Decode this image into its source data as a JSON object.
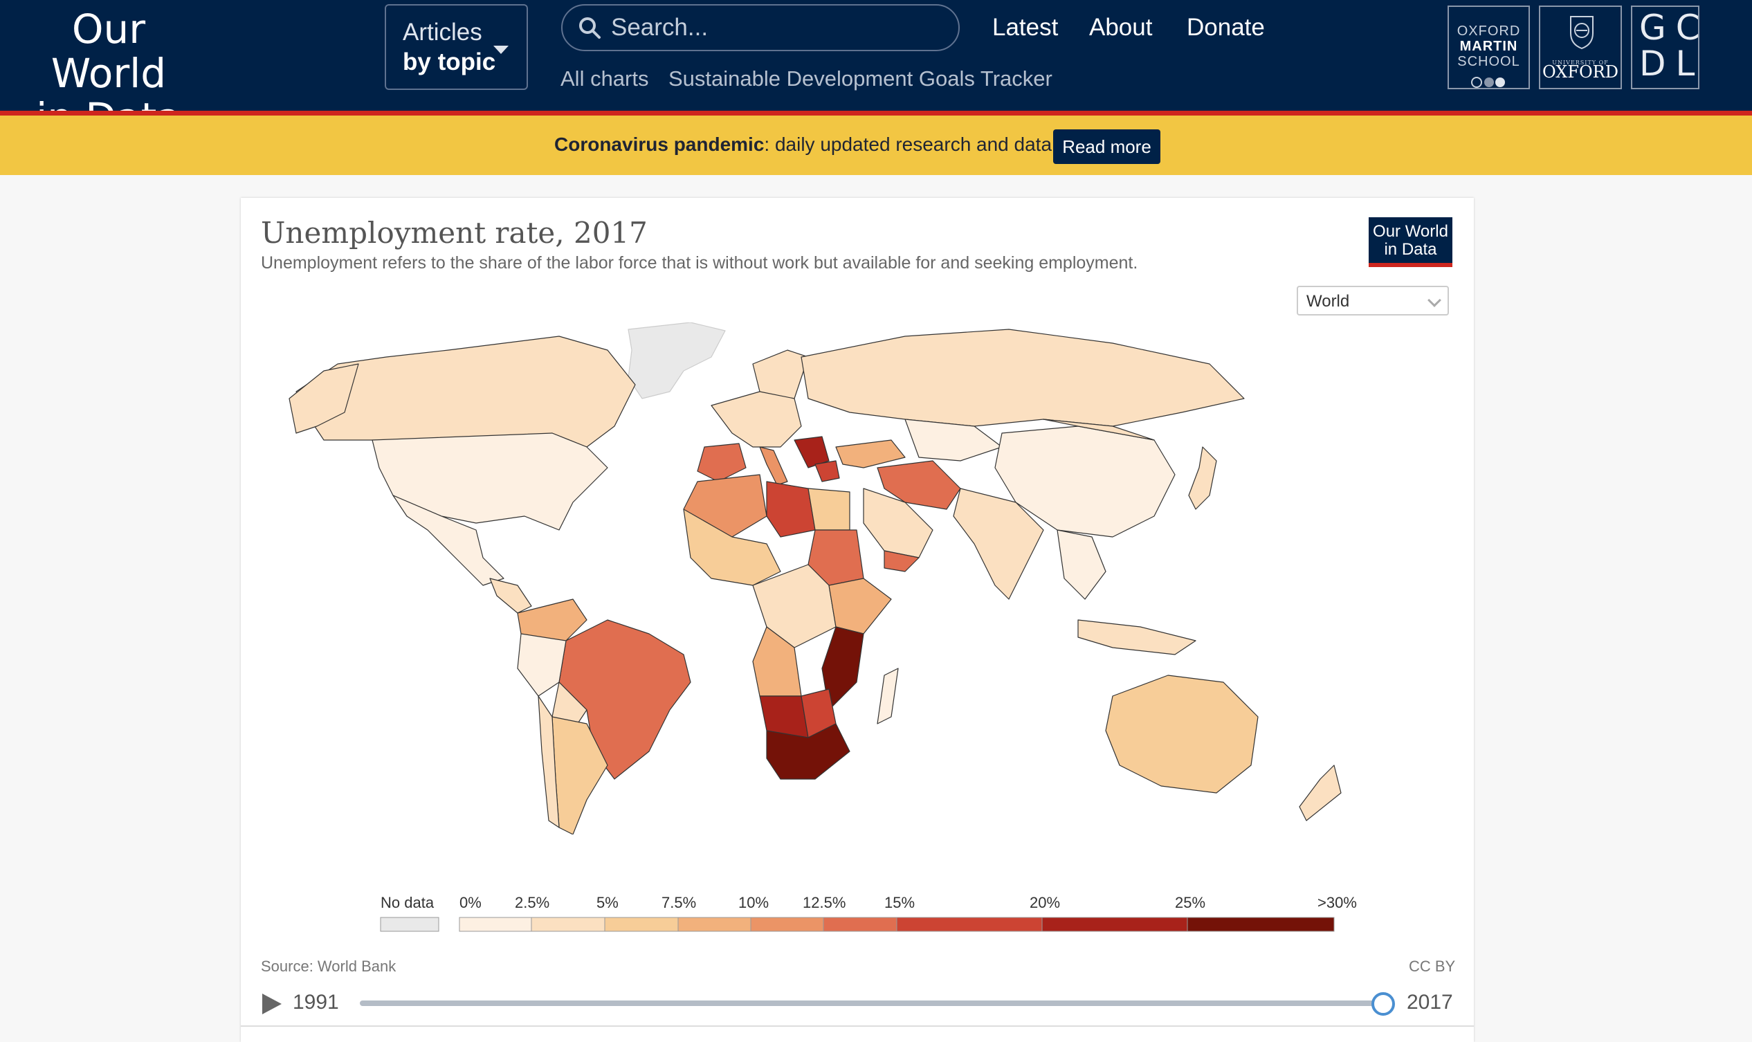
{
  "header": {
    "logo_line1": "Our World",
    "logo_line2": "in Data",
    "articles_line1": "Articles",
    "articles_line2": "by topic",
    "search_placeholder": "Search...",
    "nav": [
      "Latest",
      "About",
      "Donate"
    ],
    "subnav": [
      "All charts",
      "Sustainable Development Goals Tracker"
    ],
    "partners": {
      "oms_line1": "OXFORD",
      "oms_line2": "MARTIN",
      "oms_line3": "SCHOOL",
      "oxford_small": "UNIVERSITY OF",
      "oxford_name": "OXFORD",
      "gcdl_line1": "GC",
      "gcdl_line2": "DL"
    }
  },
  "banner": {
    "bold": "Coronavirus pandemic",
    "text": ": daily updated research and data.",
    "button": "Read more"
  },
  "chart": {
    "title": "Unemployment rate, 2017",
    "subtitle": "Unemployment refers to the share of the labor force that is without work but available for and seeking employment.",
    "badge_line1": "Our World",
    "badge_line2": "in Data",
    "region": "World",
    "source": "Source: World Bank",
    "license": "CC BY",
    "timeline_start": "1991",
    "timeline_end": "2017",
    "timeline_position": 1.0
  },
  "chart_data": {
    "type": "choropleth-map",
    "title": "Unemployment rate, 2017",
    "legend": {
      "no_data_label": "No data",
      "no_data_color": "#e9e9e9",
      "bins": [
        {
          "from": "0%",
          "to": "2.5%",
          "color": "#fdf0e2"
        },
        {
          "from": "2.5%",
          "to": "5%",
          "color": "#fbe0c1"
        },
        {
          "from": "5%",
          "to": "7.5%",
          "color": "#f7cd98"
        },
        {
          "from": "7.5%",
          "to": "10%",
          "color": "#f2b17c"
        },
        {
          "from": "10%",
          "to": "12.5%",
          "color": "#eb9466"
        },
        {
          "from": "12.5%",
          "to": "15%",
          "color": "#e06e50"
        },
        {
          "from": "15%",
          "to": "20%",
          "color": "#cc4433"
        },
        {
          "from": "20%",
          "to": "25%",
          "color": "#a8221a"
        },
        {
          "from": "25%",
          "to": ">30%",
          "color": "#741208"
        }
      ],
      "tick_labels": [
        "0%",
        "2.5%",
        "5%",
        "7.5%",
        "10%",
        "12.5%",
        "15%",
        "20%",
        "25%",
        ">30%"
      ]
    }
  }
}
